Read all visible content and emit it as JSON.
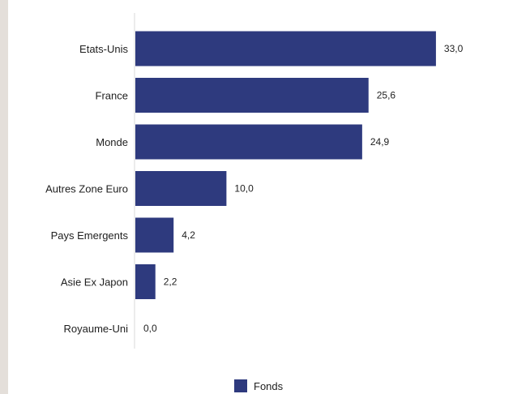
{
  "chart_data": {
    "type": "bar",
    "orientation": "horizontal",
    "categories": [
      "Etats-Unis",
      "France",
      "Monde",
      "Autres Zone Euro",
      "Pays Emergents",
      "Asie Ex Japon",
      "Royaume-Uni"
    ],
    "series": [
      {
        "name": "Fonds",
        "values": [
          33.0,
          25.6,
          24.9,
          10.0,
          4.2,
          2.2,
          0.0
        ],
        "value_labels": [
          "33,0",
          "25,6",
          "24,9",
          "10,0",
          "4,2",
          "2,2",
          "0,0"
        ],
        "color": "#2e3a7e"
      }
    ],
    "xlim": [
      0,
      35
    ],
    "grid": false,
    "legend": "bottom-center",
    "title": "",
    "xlabel": "",
    "ylabel": ""
  }
}
